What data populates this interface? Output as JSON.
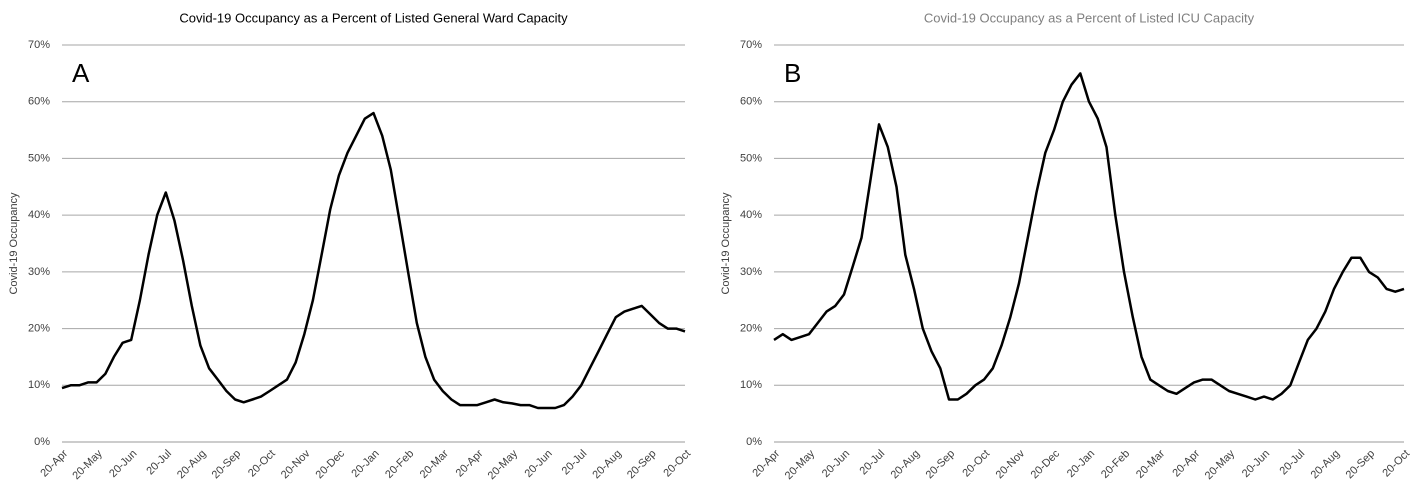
{
  "chart_data": [
    {
      "type": "line",
      "title": "Covid-19 Occupancy as a Percent of Listed General Ward Capacity",
      "title_color": "#000000",
      "annotation": "A",
      "y_label": "Covid-19 Occupancy",
      "color": "#000000",
      "grid": true,
      "ylim": [
        0,
        70
      ],
      "yticks": [
        {
          "value": 0,
          "label": "0%"
        },
        {
          "value": 10,
          "label": "10%"
        },
        {
          "value": 20,
          "label": "20%"
        },
        {
          "value": 30,
          "label": "30%"
        },
        {
          "value": 40,
          "label": "40%"
        },
        {
          "value": 50,
          "label": "50%"
        },
        {
          "value": 60,
          "label": "60%"
        },
        {
          "value": 70,
          "label": "70%"
        }
      ],
      "categories": [
        "20-Apr",
        null,
        null,
        null,
        "20-May",
        null,
        null,
        null,
        "20-Jun",
        null,
        null,
        null,
        "20-Jul",
        null,
        null,
        null,
        "20-Aug",
        null,
        null,
        null,
        "20-Sep",
        null,
        null,
        null,
        "20-Oct",
        null,
        null,
        null,
        "20-Nov",
        null,
        null,
        null,
        "20-Dec",
        null,
        null,
        null,
        "20-Jan",
        null,
        null,
        null,
        "20-Feb",
        null,
        null,
        null,
        "20-Mar",
        null,
        null,
        null,
        "20-Apr",
        null,
        null,
        null,
        "20-May",
        null,
        null,
        null,
        "20-Jun",
        null,
        null,
        null,
        "20-Jul",
        null,
        null,
        null,
        "20-Aug",
        null,
        null,
        null,
        "20-Sep",
        null,
        null,
        null,
        "20-Oct"
      ],
      "values": [
        9.5,
        10,
        10,
        10.5,
        10.5,
        12,
        15,
        17.5,
        18,
        25,
        33,
        40,
        44,
        39,
        32,
        24,
        17,
        13,
        11,
        9,
        7.5,
        7,
        7.5,
        8,
        9,
        10,
        11,
        14,
        19,
        25,
        33,
        41,
        47,
        51,
        54,
        57,
        58,
        54,
        48,
        39,
        30,
        21,
        15,
        11,
        9,
        7.5,
        6.5,
        6.5,
        6.5,
        7,
        7.5,
        7,
        6.8,
        6.5,
        6.5,
        6,
        6,
        6,
        6.5,
        8,
        10,
        13,
        16,
        19,
        22,
        23,
        23.5,
        24,
        22.5,
        21,
        20,
        20,
        19.5
      ]
    },
    {
      "type": "line",
      "title": "Covid-19 Occupancy as a Percent of Listed ICU Capacity",
      "title_color": "#7f7f7f",
      "annotation": "B",
      "y_label": "Covid-19 Occupancy",
      "color": "#000000",
      "grid": true,
      "ylim": [
        0,
        70
      ],
      "yticks": [
        {
          "value": 0,
          "label": "0%"
        },
        {
          "value": 10,
          "label": "10%"
        },
        {
          "value": 20,
          "label": "20%"
        },
        {
          "value": 30,
          "label": "30%"
        },
        {
          "value": 40,
          "label": "40%"
        },
        {
          "value": 50,
          "label": "50%"
        },
        {
          "value": 60,
          "label": "60%"
        },
        {
          "value": 70,
          "label": "70%"
        }
      ],
      "categories": [
        "20-Apr",
        null,
        null,
        null,
        "20-May",
        null,
        null,
        null,
        "20-Jun",
        null,
        null,
        null,
        "20-Jul",
        null,
        null,
        null,
        "20-Aug",
        null,
        null,
        null,
        "20-Sep",
        null,
        null,
        null,
        "20-Oct",
        null,
        null,
        null,
        "20-Nov",
        null,
        null,
        null,
        "20-Dec",
        null,
        null,
        null,
        "20-Jan",
        null,
        null,
        null,
        "20-Feb",
        null,
        null,
        null,
        "20-Mar",
        null,
        null,
        null,
        "20-Apr",
        null,
        null,
        null,
        "20-May",
        null,
        null,
        null,
        "20-Jun",
        null,
        null,
        null,
        "20-Jul",
        null,
        null,
        null,
        "20-Aug",
        null,
        null,
        null,
        "20-Sep",
        null,
        null,
        null,
        "20-Oct"
      ],
      "values": [
        18,
        19,
        18,
        18.5,
        19,
        21,
        23,
        24,
        26,
        31,
        36,
        46,
        56,
        52,
        45,
        33,
        27,
        20,
        16,
        13,
        7.5,
        7.5,
        8.5,
        10,
        11,
        13,
        17,
        22,
        28,
        36,
        44,
        51,
        55,
        60,
        63,
        65,
        60,
        57,
        52,
        40,
        30,
        22,
        15,
        11,
        10,
        9,
        8.5,
        9.5,
        10.5,
        11,
        11,
        10,
        9,
        8.5,
        8,
        7.5,
        8,
        7.5,
        8.5,
        10,
        14,
        18,
        20,
        23,
        27,
        30,
        32.5,
        32.5,
        30,
        29,
        27,
        26.5,
        27
      ]
    }
  ]
}
